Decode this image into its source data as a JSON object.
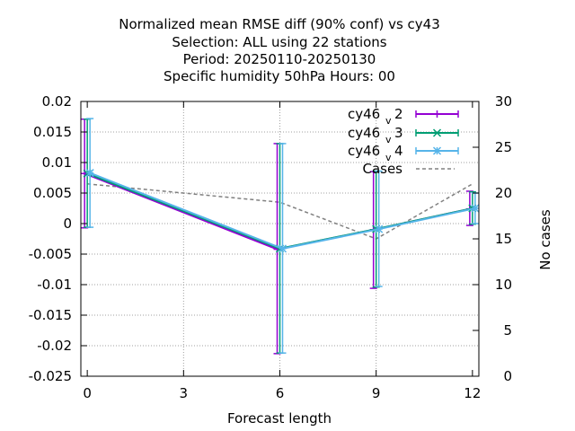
{
  "chart_data": {
    "type": "line",
    "title_lines": [
      "Normalized mean RMSE diff (90% conf) vs cy43",
      "Selection: ALL using    22 stations",
      "Period: 20250110-20250130",
      "Specific humidity 50hPa   Hours:  00"
    ],
    "xlabel": "Forecast length",
    "ylabel": "",
    "y2label": "No cases",
    "xlim": [
      -0.2,
      12.2
    ],
    "ylim": [
      -0.025,
      0.02
    ],
    "y2lim": [
      0,
      30
    ],
    "xticks": [
      "0",
      "3",
      "6",
      "9",
      "12"
    ],
    "yticks": [
      "0.02",
      "0.015",
      "0.01",
      "0.005",
      "0",
      "-0.005",
      "-0.01",
      "-0.015",
      "-0.02",
      "-0.025"
    ],
    "y2ticks": [
      "30",
      "25",
      "20",
      "15",
      "10",
      "5",
      "0"
    ],
    "grid": true,
    "legend_position": "top-right",
    "series": [
      {
        "name": "cy46",
        "sub": "v",
        "suffix": "2",
        "color": "#9400d3",
        "marker": "plus",
        "x": [
          0,
          6,
          9,
          12
        ],
        "y": [
          0.0082,
          -0.0042,
          -0.001,
          0.0024
        ],
        "err_low": [
          -0.0007,
          -0.0213,
          -0.0106,
          -0.0003
        ],
        "err_high": [
          0.0171,
          0.0131,
          0.0085,
          0.0053
        ]
      },
      {
        "name": "cy46",
        "sub": "v",
        "suffix": "3",
        "color": "#009e73",
        "marker": "cross",
        "x": [
          0,
          6,
          9,
          12
        ],
        "y": [
          0.0082,
          -0.0041,
          -0.0009,
          0.0025
        ],
        "err_low": [
          -0.0006,
          -0.0212,
          -0.0104,
          -0.0001
        ],
        "err_high": [
          0.0171,
          0.0131,
          0.0086,
          0.0052
        ]
      },
      {
        "name": "cy46",
        "sub": "v",
        "suffix": "4",
        "color": "#56b4e9",
        "marker": "star",
        "x": [
          0,
          6,
          9,
          12
        ],
        "y": [
          0.0083,
          -0.0041,
          -0.0009,
          0.0025
        ],
        "err_low": [
          -0.0006,
          -0.0212,
          -0.0103,
          0.0
        ],
        "err_high": [
          0.0172,
          0.0131,
          0.0086,
          0.005
        ]
      }
    ],
    "cases": {
      "name": "Cases",
      "color": "#808080",
      "x": [
        0,
        6,
        9,
        12
      ],
      "y": [
        21,
        19,
        15,
        21
      ]
    }
  }
}
